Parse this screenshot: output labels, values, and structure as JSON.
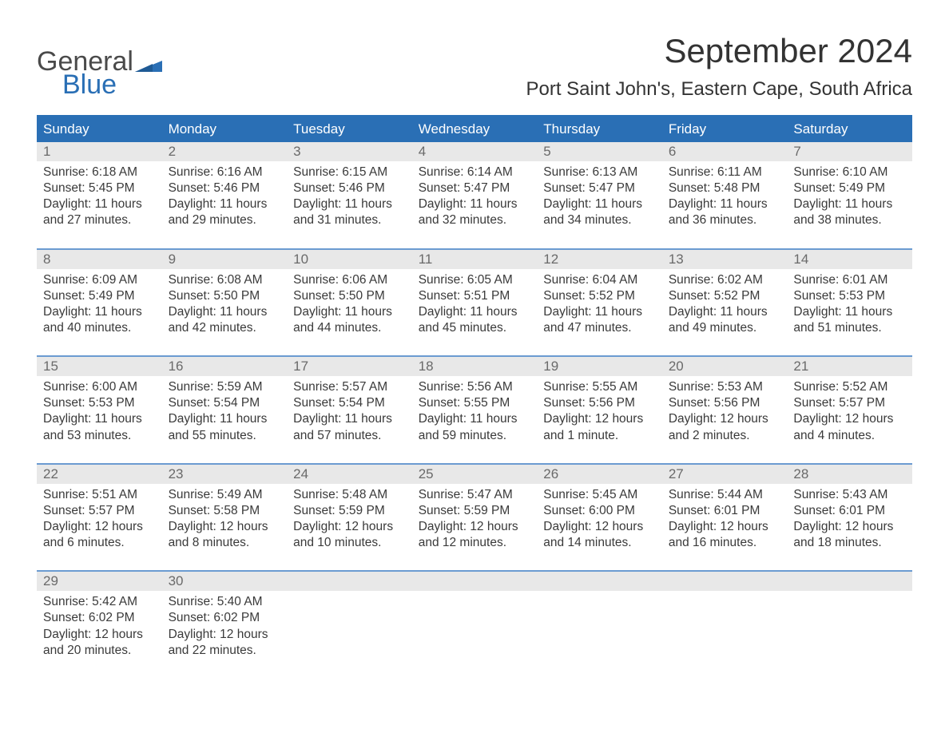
{
  "logo": {
    "general": "General",
    "blue": "Blue",
    "flag_color": "#2a6fb5"
  },
  "title": "September 2024",
  "location": "Port Saint John's, Eastern Cape, South Africa",
  "colors": {
    "header_bg": "#2a6fb5",
    "week_border": "#6b9bd1",
    "daynum_bg": "#e8e8e8",
    "text": "#3a3a3a",
    "muted": "#6a6a6a"
  },
  "weekdays": [
    "Sunday",
    "Monday",
    "Tuesday",
    "Wednesday",
    "Thursday",
    "Friday",
    "Saturday"
  ],
  "weeks": [
    [
      {
        "n": "1",
        "sunrise": "6:18 AM",
        "sunset": "5:45 PM",
        "dl1": "11 hours",
        "dl2": "and 27 minutes."
      },
      {
        "n": "2",
        "sunrise": "6:16 AM",
        "sunset": "5:46 PM",
        "dl1": "11 hours",
        "dl2": "and 29 minutes."
      },
      {
        "n": "3",
        "sunrise": "6:15 AM",
        "sunset": "5:46 PM",
        "dl1": "11 hours",
        "dl2": "and 31 minutes."
      },
      {
        "n": "4",
        "sunrise": "6:14 AM",
        "sunset": "5:47 PM",
        "dl1": "11 hours",
        "dl2": "and 32 minutes."
      },
      {
        "n": "5",
        "sunrise": "6:13 AM",
        "sunset": "5:47 PM",
        "dl1": "11 hours",
        "dl2": "and 34 minutes."
      },
      {
        "n": "6",
        "sunrise": "6:11 AM",
        "sunset": "5:48 PM",
        "dl1": "11 hours",
        "dl2": "and 36 minutes."
      },
      {
        "n": "7",
        "sunrise": "6:10 AM",
        "sunset": "5:49 PM",
        "dl1": "11 hours",
        "dl2": "and 38 minutes."
      }
    ],
    [
      {
        "n": "8",
        "sunrise": "6:09 AM",
        "sunset": "5:49 PM",
        "dl1": "11 hours",
        "dl2": "and 40 minutes."
      },
      {
        "n": "9",
        "sunrise": "6:08 AM",
        "sunset": "5:50 PM",
        "dl1": "11 hours",
        "dl2": "and 42 minutes."
      },
      {
        "n": "10",
        "sunrise": "6:06 AM",
        "sunset": "5:50 PM",
        "dl1": "11 hours",
        "dl2": "and 44 minutes."
      },
      {
        "n": "11",
        "sunrise": "6:05 AM",
        "sunset": "5:51 PM",
        "dl1": "11 hours",
        "dl2": "and 45 minutes."
      },
      {
        "n": "12",
        "sunrise": "6:04 AM",
        "sunset": "5:52 PM",
        "dl1": "11 hours",
        "dl2": "and 47 minutes."
      },
      {
        "n": "13",
        "sunrise": "6:02 AM",
        "sunset": "5:52 PM",
        "dl1": "11 hours",
        "dl2": "and 49 minutes."
      },
      {
        "n": "14",
        "sunrise": "6:01 AM",
        "sunset": "5:53 PM",
        "dl1": "11 hours",
        "dl2": "and 51 minutes."
      }
    ],
    [
      {
        "n": "15",
        "sunrise": "6:00 AM",
        "sunset": "5:53 PM",
        "dl1": "11 hours",
        "dl2": "and 53 minutes."
      },
      {
        "n": "16",
        "sunrise": "5:59 AM",
        "sunset": "5:54 PM",
        "dl1": "11 hours",
        "dl2": "and 55 minutes."
      },
      {
        "n": "17",
        "sunrise": "5:57 AM",
        "sunset": "5:54 PM",
        "dl1": "11 hours",
        "dl2": "and 57 minutes."
      },
      {
        "n": "18",
        "sunrise": "5:56 AM",
        "sunset": "5:55 PM",
        "dl1": "11 hours",
        "dl2": "and 59 minutes."
      },
      {
        "n": "19",
        "sunrise": "5:55 AM",
        "sunset": "5:56 PM",
        "dl1": "12 hours",
        "dl2": "and 1 minute."
      },
      {
        "n": "20",
        "sunrise": "5:53 AM",
        "sunset": "5:56 PM",
        "dl1": "12 hours",
        "dl2": "and 2 minutes."
      },
      {
        "n": "21",
        "sunrise": "5:52 AM",
        "sunset": "5:57 PM",
        "dl1": "12 hours",
        "dl2": "and 4 minutes."
      }
    ],
    [
      {
        "n": "22",
        "sunrise": "5:51 AM",
        "sunset": "5:57 PM",
        "dl1": "12 hours",
        "dl2": "and 6 minutes."
      },
      {
        "n": "23",
        "sunrise": "5:49 AM",
        "sunset": "5:58 PM",
        "dl1": "12 hours",
        "dl2": "and 8 minutes."
      },
      {
        "n": "24",
        "sunrise": "5:48 AM",
        "sunset": "5:59 PM",
        "dl1": "12 hours",
        "dl2": "and 10 minutes."
      },
      {
        "n": "25",
        "sunrise": "5:47 AM",
        "sunset": "5:59 PM",
        "dl1": "12 hours",
        "dl2": "and 12 minutes."
      },
      {
        "n": "26",
        "sunrise": "5:45 AM",
        "sunset": "6:00 PM",
        "dl1": "12 hours",
        "dl2": "and 14 minutes."
      },
      {
        "n": "27",
        "sunrise": "5:44 AM",
        "sunset": "6:01 PM",
        "dl1": "12 hours",
        "dl2": "and 16 minutes."
      },
      {
        "n": "28",
        "sunrise": "5:43 AM",
        "sunset": "6:01 PM",
        "dl1": "12 hours",
        "dl2": "and 18 minutes."
      }
    ],
    [
      {
        "n": "29",
        "sunrise": "5:42 AM",
        "sunset": "6:02 PM",
        "dl1": "12 hours",
        "dl2": "and 20 minutes."
      },
      {
        "n": "30",
        "sunrise": "5:40 AM",
        "sunset": "6:02 PM",
        "dl1": "12 hours",
        "dl2": "and 22 minutes."
      },
      null,
      null,
      null,
      null,
      null
    ]
  ],
  "labels": {
    "sunrise": "Sunrise: ",
    "sunset": "Sunset: ",
    "daylight": "Daylight: "
  }
}
